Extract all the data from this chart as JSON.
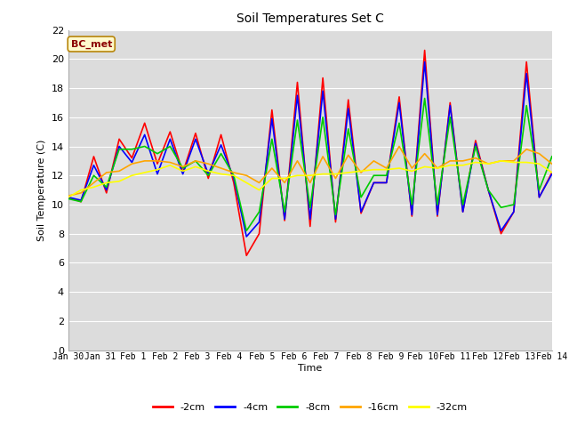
{
  "title": "Soil Temperatures Set C",
  "xlabel": "Time",
  "ylabel": "Soil Temperature (C)",
  "ylim": [
    0,
    22
  ],
  "yticks": [
    0,
    2,
    4,
    6,
    8,
    10,
    12,
    14,
    16,
    18,
    20,
    22
  ],
  "annotation": "BC_met",
  "annotation_color": "#8B0000",
  "annotation_bg": "#FFFACD",
  "annotation_edge": "#B8860B",
  "fig_bg": "#FFFFFF",
  "plot_bg": "#DCDCDC",
  "grid_color": "#FFFFFF",
  "series_order": [
    "-2cm",
    "-4cm",
    "-8cm",
    "-16cm",
    "-32cm"
  ],
  "series_colors": {
    "-2cm": "#FF0000",
    "-4cm": "#0000FF",
    "-8cm": "#00CC00",
    "-16cm": "#FFA500",
    "-32cm": "#FFFF00"
  },
  "series_lw": 1.2,
  "x_labels": [
    "Jan 30",
    "Jan 31",
    "Feb 1",
    "Feb 2",
    "Feb 3",
    "Feb 4",
    "Feb 5",
    "Feb 6",
    "Feb 7",
    "Feb 8",
    "Feb 9",
    "Feb 10",
    "Feb 11",
    "Feb 12",
    "Feb 13",
    "Feb 14"
  ],
  "data": {
    "-2cm": [
      10.5,
      10.2,
      13.3,
      10.8,
      14.5,
      13.2,
      15.6,
      12.8,
      15.0,
      12.2,
      14.9,
      11.8,
      14.8,
      11.5,
      6.5,
      8.0,
      16.5,
      8.9,
      18.4,
      8.5,
      18.7,
      8.8,
      17.2,
      9.4,
      11.5,
      11.5,
      17.4,
      9.2,
      20.6,
      9.2,
      17.0,
      9.5,
      14.4,
      11.0,
      8.0,
      9.5,
      19.8,
      10.5,
      12.2
    ],
    "-4cm": [
      10.5,
      10.3,
      12.7,
      11.0,
      14.0,
      12.9,
      14.8,
      12.1,
      14.5,
      12.1,
      14.5,
      12.1,
      14.1,
      11.8,
      7.8,
      8.8,
      15.9,
      9.0,
      17.5,
      9.0,
      17.8,
      9.0,
      16.6,
      9.5,
      11.5,
      11.5,
      17.0,
      9.3,
      19.8,
      9.3,
      16.8,
      9.5,
      14.2,
      11.0,
      8.2,
      9.5,
      19.0,
      10.5,
      12.1
    ],
    "-8cm": [
      10.4,
      10.2,
      12.0,
      11.2,
      13.8,
      13.8,
      14.0,
      13.5,
      14.0,
      12.5,
      13.0,
      12.0,
      13.5,
      12.0,
      8.2,
      9.5,
      14.5,
      9.5,
      15.8,
      9.8,
      16.0,
      9.3,
      15.2,
      10.5,
      12.0,
      12.0,
      15.6,
      10.0,
      17.3,
      10.0,
      16.0,
      10.0,
      14.0,
      11.0,
      9.8,
      10.0,
      16.8,
      11.0,
      13.3
    ],
    "-16cm": [
      10.6,
      10.8,
      11.5,
      12.2,
      12.3,
      12.8,
      13.0,
      13.0,
      12.9,
      12.6,
      13.0,
      12.8,
      12.5,
      12.2,
      12.0,
      11.5,
      12.5,
      11.5,
      13.0,
      11.5,
      13.3,
      11.8,
      13.4,
      12.2,
      13.0,
      12.5,
      14.0,
      12.5,
      13.5,
      12.5,
      13.0,
      13.0,
      13.2,
      12.8,
      13.0,
      13.0,
      13.8,
      13.5,
      12.8
    ],
    "-32cm": [
      10.5,
      11.0,
      11.2,
      11.5,
      11.6,
      12.0,
      12.2,
      12.4,
      12.7,
      12.3,
      12.6,
      12.3,
      12.1,
      12.0,
      11.5,
      11.0,
      11.8,
      11.8,
      12.0,
      12.0,
      12.1,
      12.1,
      12.2,
      12.3,
      12.4,
      12.4,
      12.5,
      12.3,
      12.6,
      12.5,
      12.7,
      12.7,
      12.9,
      12.8,
      13.0,
      12.9,
      12.9,
      12.8,
      12.2
    ]
  }
}
